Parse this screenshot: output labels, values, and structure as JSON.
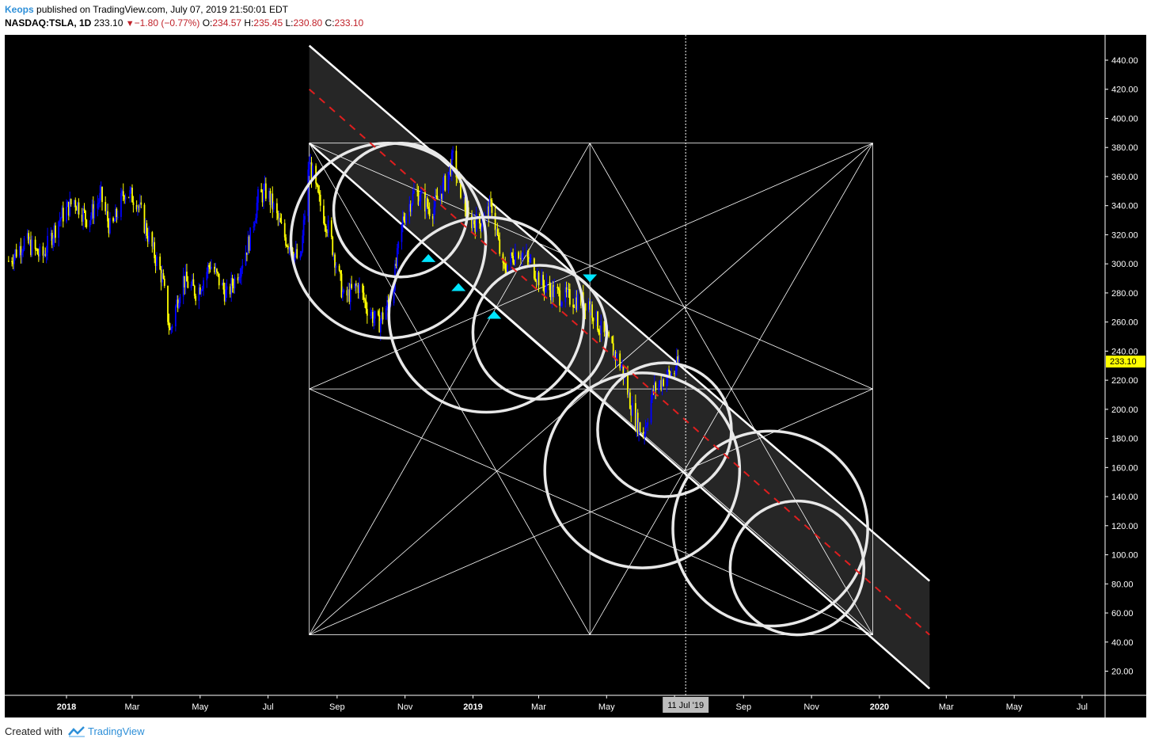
{
  "header": {
    "author": "Keops",
    "published": "published on TradingView.com, July 07, 2019 21:50:01 EDT"
  },
  "ticker": {
    "symbol": "NASDAQ:TSLA, 1D",
    "last": "233.10",
    "change": "−1.80 (−0.77%)",
    "open_label": "O:",
    "open": "234.57",
    "high_label": "H:",
    "high": "235.45",
    "low_label": "L:",
    "low": "230.80",
    "close_label": "C:",
    "close": "233.10"
  },
  "footer": {
    "created_with": "Created with",
    "brand": "TradingView"
  },
  "colors": {
    "background": "#000000",
    "up_candle": "#0000ff",
    "down_candle": "#ffff00",
    "price_label": "#ffff00",
    "geometry": "#ffffff",
    "midline": "#e01e1e",
    "arrows": "#00e5ff",
    "channel_fill": "#262626"
  },
  "chart_data": {
    "type": "candlestick",
    "symbol": "NASDAQ:TSLA",
    "interval": "1D",
    "x_tick_labels": [
      "2018",
      "Mar",
      "May",
      "Jul",
      "Sep",
      "Nov",
      "2019",
      "Mar",
      "May",
      "Jul",
      "Sep",
      "Nov",
      "2020",
      "Mar",
      "May",
      "Jul"
    ],
    "x_tick_dates": [
      "2018-01-01",
      "2018-03-01",
      "2018-05-01",
      "2018-07-01",
      "2018-09-01",
      "2018-11-01",
      "2019-01-01",
      "2019-03-01",
      "2019-05-01",
      "2019-07-01",
      "2019-09-01",
      "2019-11-01",
      "2020-01-01",
      "2020-03-01",
      "2020-05-01",
      "2020-07-01"
    ],
    "ylim": [
      4,
      450
    ],
    "y_ticks": [
      20,
      40,
      60,
      80,
      100,
      120,
      140,
      160,
      180,
      200,
      220,
      240,
      260,
      280,
      300,
      320,
      340,
      360,
      380,
      400,
      420,
      440
    ],
    "y_tick_labels": [
      "20.00",
      "40.00",
      "60.00",
      "80.00",
      "100.00",
      "120.00",
      "140.00",
      "160.00",
      "180.00",
      "200.00",
      "220.00",
      "240.00",
      "260.00",
      "280.00",
      "300.00",
      "320.00",
      "340.00",
      "360.00",
      "380.00",
      "400.00",
      "420.00",
      "440.00"
    ],
    "last_price": 233.1,
    "last_price_label": "233.10",
    "crosshair_date": "2019-07-11",
    "crosshair_label": "11 Jul '19",
    "price_path": [
      [
        "2017-11-10",
        302
      ],
      [
        "2017-11-25",
        316
      ],
      [
        "2017-12-10",
        304
      ],
      [
        "2017-12-25",
        330
      ],
      [
        "2018-01-08",
        344
      ],
      [
        "2018-01-20",
        330
      ],
      [
        "2018-02-01",
        346
      ],
      [
        "2018-02-10",
        322
      ],
      [
        "2018-02-22",
        350
      ],
      [
        "2018-03-05",
        344
      ],
      [
        "2018-03-15",
        320
      ],
      [
        "2018-03-28",
        290
      ],
      [
        "2018-04-04",
        253
      ],
      [
        "2018-04-15",
        290
      ],
      [
        "2018-04-28",
        280
      ],
      [
        "2018-05-10",
        300
      ],
      [
        "2018-05-25",
        278
      ],
      [
        "2018-06-05",
        296
      ],
      [
        "2018-06-15",
        318
      ],
      [
        "2018-06-22",
        345
      ],
      [
        "2018-06-30",
        350
      ],
      [
        "2018-07-15",
        320
      ],
      [
        "2018-07-30",
        300
      ],
      [
        "2018-08-07",
        370
      ],
      [
        "2018-08-15",
        345
      ],
      [
        "2018-08-25",
        322
      ],
      [
        "2018-09-07",
        276
      ],
      [
        "2018-09-20",
        285
      ],
      [
        "2018-09-28",
        270
      ],
      [
        "2018-10-08",
        258
      ],
      [
        "2018-10-20",
        278
      ],
      [
        "2018-10-30",
        330
      ],
      [
        "2018-11-10",
        350
      ],
      [
        "2018-11-25",
        336
      ],
      [
        "2018-12-05",
        352
      ],
      [
        "2018-12-14",
        372
      ],
      [
        "2018-12-28",
        330
      ],
      [
        "2019-01-08",
        328
      ],
      [
        "2019-01-18",
        340
      ],
      [
        "2019-01-28",
        295
      ],
      [
        "2019-02-10",
        310
      ],
      [
        "2019-02-22",
        300
      ],
      [
        "2019-03-05",
        285
      ],
      [
        "2019-03-20",
        278
      ],
      [
        "2019-04-05",
        275
      ],
      [
        "2019-04-15",
        274
      ],
      [
        "2019-04-25",
        255
      ],
      [
        "2019-05-05",
        243
      ],
      [
        "2019-05-15",
        228
      ],
      [
        "2019-05-25",
        196
      ],
      [
        "2019-06-03",
        183
      ],
      [
        "2019-06-12",
        213
      ],
      [
        "2019-06-22",
        222
      ],
      [
        "2019-07-01",
        226
      ],
      [
        "2019-07-05",
        233
      ]
    ],
    "overlay": {
      "square_dates": [
        "2018-08-07",
        "2019-12-26"
      ],
      "square_vertical_mid_date": "2019-04-16",
      "square_prices": [
        45,
        214,
        383
      ],
      "channel": [
        {
          "name": "upper",
          "from": [
            "2018-08-07",
            450
          ],
          "to": [
            "2020-02-15",
            82
          ]
        },
        {
          "name": "lower",
          "from": [
            "2018-08-07",
            383
          ],
          "to": [
            "2020-02-15",
            8
          ]
        },
        {
          "name": "mid",
          "from": [
            "2018-08-07",
            420
          ],
          "to": [
            "2020-02-15",
            45
          ]
        }
      ],
      "circles": [
        {
          "center": [
            "2018-10-17",
            316
          ],
          "radius_price": 67
        },
        {
          "center": [
            "2018-10-28",
            337
          ],
          "radius_price": 46
        },
        {
          "center": [
            "2019-01-13",
            265
          ],
          "radius_price": 67
        },
        {
          "center": [
            "2019-03-02",
            253
          ],
          "radius_price": 46
        },
        {
          "center": [
            "2019-06-22",
            186
          ],
          "radius_price": 46
        },
        {
          "center": [
            "2019-06-02",
            158
          ],
          "radius_price": 67
        },
        {
          "center": [
            "2019-09-25",
            118
          ],
          "radius_price": 67
        },
        {
          "center": [
            "2019-10-19",
            91
          ],
          "radius_price": 46
        }
      ],
      "arrows": [
        {
          "date": "2018-11-22",
          "price": 304,
          "dir": "up"
        },
        {
          "date": "2018-12-19",
          "price": 284,
          "dir": "up"
        },
        {
          "date": "2019-01-20",
          "price": 265,
          "dir": "up"
        },
        {
          "date": "2019-04-16",
          "price": 290,
          "dir": "down"
        }
      ]
    }
  }
}
